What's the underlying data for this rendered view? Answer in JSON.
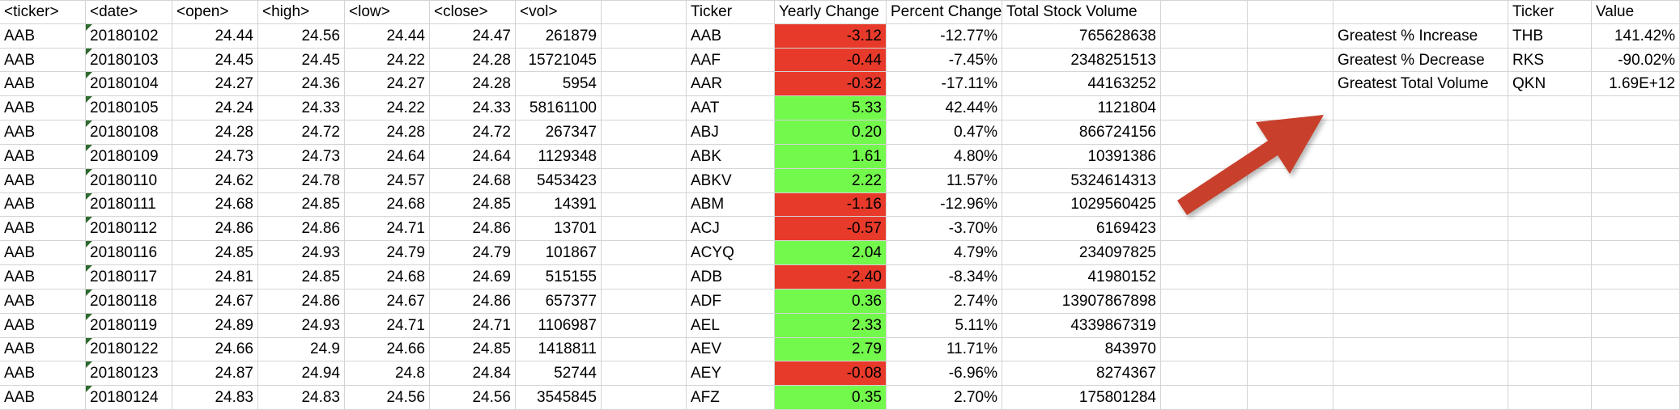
{
  "colors": {
    "grid_line": "#D4D4D4",
    "positive_fill": "#73F84C",
    "negative_fill": "#E83A2B",
    "error_indicator": "#2F6B2F",
    "arrow": "#C8402B"
  },
  "stock_table": {
    "headers": {
      "ticker": "<ticker>",
      "date": "<date>",
      "open": "<open>",
      "high": "<high>",
      "low": "<low>",
      "close": "<close>",
      "vol": "<vol>"
    },
    "rows": [
      {
        "ticker": "AAB",
        "date": "20180102",
        "open": "24.44",
        "high": "24.56",
        "low": "24.44",
        "close": "24.47",
        "vol": "261879"
      },
      {
        "ticker": "AAB",
        "date": "20180103",
        "open": "24.45",
        "high": "24.45",
        "low": "24.22",
        "close": "24.28",
        "vol": "15721045"
      },
      {
        "ticker": "AAB",
        "date": "20180104",
        "open": "24.27",
        "high": "24.36",
        "low": "24.27",
        "close": "24.28",
        "vol": "5954"
      },
      {
        "ticker": "AAB",
        "date": "20180105",
        "open": "24.24",
        "high": "24.33",
        "low": "24.22",
        "close": "24.33",
        "vol": "58161100"
      },
      {
        "ticker": "AAB",
        "date": "20180108",
        "open": "24.28",
        "high": "24.72",
        "low": "24.28",
        "close": "24.72",
        "vol": "267347"
      },
      {
        "ticker": "AAB",
        "date": "20180109",
        "open": "24.73",
        "high": "24.73",
        "low": "24.64",
        "close": "24.64",
        "vol": "1129348"
      },
      {
        "ticker": "AAB",
        "date": "20180110",
        "open": "24.62",
        "high": "24.78",
        "low": "24.57",
        "close": "24.68",
        "vol": "5453423"
      },
      {
        "ticker": "AAB",
        "date": "20180111",
        "open": "24.68",
        "high": "24.85",
        "low": "24.68",
        "close": "24.85",
        "vol": "14391"
      },
      {
        "ticker": "AAB",
        "date": "20180112",
        "open": "24.86",
        "high": "24.86",
        "low": "24.71",
        "close": "24.86",
        "vol": "13701"
      },
      {
        "ticker": "AAB",
        "date": "20180116",
        "open": "24.85",
        "high": "24.93",
        "low": "24.79",
        "close": "24.79",
        "vol": "101867"
      },
      {
        "ticker": "AAB",
        "date": "20180117",
        "open": "24.81",
        "high": "24.85",
        "low": "24.68",
        "close": "24.69",
        "vol": "515155"
      },
      {
        "ticker": "AAB",
        "date": "20180118",
        "open": "24.67",
        "high": "24.86",
        "low": "24.67",
        "close": "24.86",
        "vol": "657377"
      },
      {
        "ticker": "AAB",
        "date": "20180119",
        "open": "24.89",
        "high": "24.93",
        "low": "24.71",
        "close": "24.71",
        "vol": "1106987"
      },
      {
        "ticker": "AAB",
        "date": "20180122",
        "open": "24.66",
        "high": "24.9",
        "low": "24.66",
        "close": "24.85",
        "vol": "1418811"
      },
      {
        "ticker": "AAB",
        "date": "20180123",
        "open": "24.87",
        "high": "24.94",
        "low": "24.8",
        "close": "24.84",
        "vol": "52744"
      },
      {
        "ticker": "AAB",
        "date": "20180124",
        "open": "24.83",
        "high": "24.83",
        "low": "24.56",
        "close": "24.56",
        "vol": "3545845"
      }
    ]
  },
  "analysis_table": {
    "headers": {
      "ticker": "Ticker",
      "yearly_change": "Yearly Change",
      "percent_change": "Percent Change",
      "total_volume": "Total Stock Volume"
    },
    "rows": [
      {
        "ticker": "AAB",
        "yearly_change": "-3.12",
        "percent_change": "-12.77%",
        "total_volume": "765628638",
        "direction": "down"
      },
      {
        "ticker": "AAF",
        "yearly_change": "-0.44",
        "percent_change": "-7.45%",
        "total_volume": "2348251513",
        "direction": "down"
      },
      {
        "ticker": "AAR",
        "yearly_change": "-0.32",
        "percent_change": "-17.11%",
        "total_volume": "44163252",
        "direction": "down"
      },
      {
        "ticker": "AAT",
        "yearly_change": "5.33",
        "percent_change": "42.44%",
        "total_volume": "1121804",
        "direction": "up"
      },
      {
        "ticker": "ABJ",
        "yearly_change": "0.20",
        "percent_change": "0.47%",
        "total_volume": "866724156",
        "direction": "up"
      },
      {
        "ticker": "ABK",
        "yearly_change": "1.61",
        "percent_change": "4.80%",
        "total_volume": "10391386",
        "direction": "up"
      },
      {
        "ticker": "ABKV",
        "yearly_change": "2.22",
        "percent_change": "11.57%",
        "total_volume": "5324614313",
        "direction": "up"
      },
      {
        "ticker": "ABM",
        "yearly_change": "-1.16",
        "percent_change": "-12.96%",
        "total_volume": "1029560425",
        "direction": "down"
      },
      {
        "ticker": "ACJ",
        "yearly_change": "-0.57",
        "percent_change": "-3.70%",
        "total_volume": "6169423",
        "direction": "down"
      },
      {
        "ticker": "ACYQ",
        "yearly_change": "2.04",
        "percent_change": "4.79%",
        "total_volume": "234097825",
        "direction": "up"
      },
      {
        "ticker": "ADB",
        "yearly_change": "-2.40",
        "percent_change": "-8.34%",
        "total_volume": "41980152",
        "direction": "down"
      },
      {
        "ticker": "ADF",
        "yearly_change": "0.36",
        "percent_change": "2.74%",
        "total_volume": "13907867898",
        "direction": "up"
      },
      {
        "ticker": "AEL",
        "yearly_change": "2.33",
        "percent_change": "5.11%",
        "total_volume": "4339867319",
        "direction": "up"
      },
      {
        "ticker": "AEV",
        "yearly_change": "2.79",
        "percent_change": "11.71%",
        "total_volume": "843970",
        "direction": "up"
      },
      {
        "ticker": "AEY",
        "yearly_change": "-0.08",
        "percent_change": "-6.96%",
        "total_volume": "8274367",
        "direction": "down"
      },
      {
        "ticker": "AFZ",
        "yearly_change": "0.35",
        "percent_change": "2.70%",
        "total_volume": "175801284",
        "direction": "up"
      }
    ]
  },
  "greatest_table": {
    "headers": {
      "ticker": "Ticker",
      "value": "Value"
    },
    "rows": [
      {
        "label": "Greatest % Increase",
        "ticker": "THB",
        "value": "141.42%"
      },
      {
        "label": "Greatest % Decrease",
        "ticker": "RKS",
        "value": "-90.02%"
      },
      {
        "label": "Greatest Total Volume",
        "ticker": "QKN",
        "value": "1.69E+12"
      }
    ]
  }
}
